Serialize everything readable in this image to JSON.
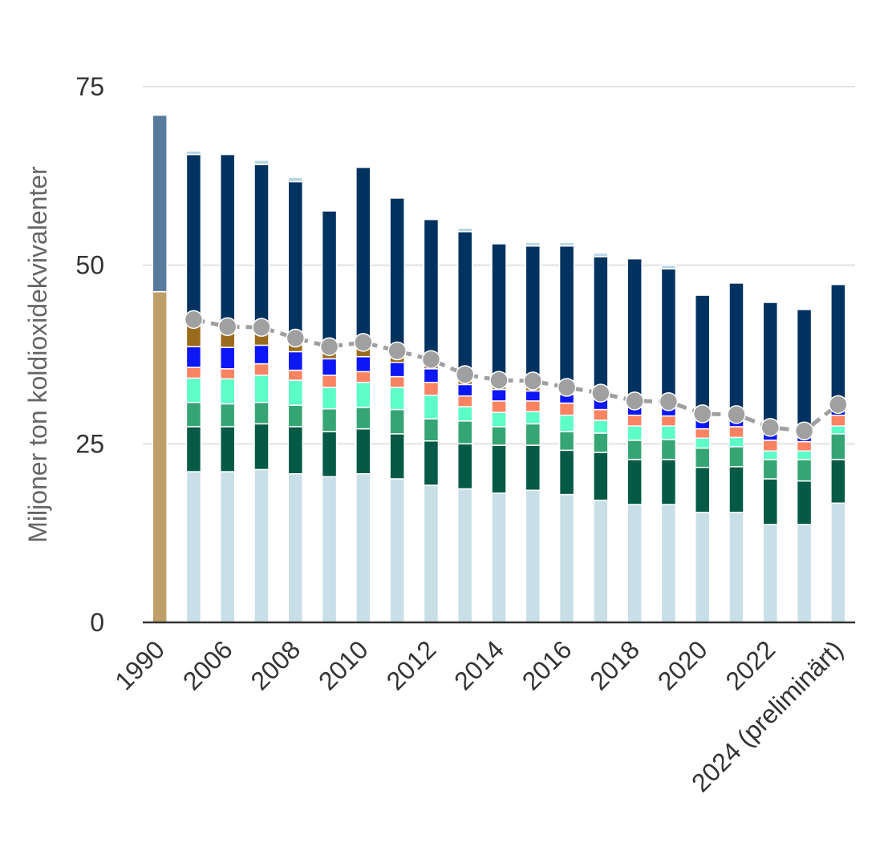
{
  "chart_data": {
    "type": "bar",
    "y_label": "Miljoner ton koldioxidekvivalenter",
    "categories": [
      "1990",
      null,
      "2006",
      null,
      "2008",
      null,
      "2010",
      null,
      "2012",
      null,
      "2014",
      null,
      "2016",
      null,
      "2018",
      null,
      "2020",
      null,
      "2022",
      null,
      "2024 (preliminärt)"
    ],
    "ylim": [
      0,
      75
    ],
    "yticks": [
      0,
      25,
      50,
      75
    ],
    "grid": true,
    "series": [
      {
        "color": "#bf9f69",
        "values": [
          46.3,
          null,
          null,
          null,
          null,
          null,
          null,
          null,
          null,
          null,
          null,
          null,
          null,
          null,
          null,
          null,
          null,
          null,
          null,
          null,
          null
        ]
      },
      {
        "color": "#587a9c",
        "values": [
          24.7,
          null,
          null,
          null,
          null,
          null,
          null,
          null,
          null,
          null,
          null,
          null,
          null,
          null,
          null,
          null,
          null,
          null,
          null,
          null,
          null
        ]
      },
      {
        "color": "#c9dfe7",
        "values": [
          null,
          21.1,
          21.1,
          21.4,
          20.8,
          20.4,
          20.8,
          20.1,
          19.2,
          18.7,
          18.1,
          18.5,
          17.9,
          17.1,
          16.5,
          16.5,
          15.4,
          15.4,
          13.7,
          13.7,
          16.7
        ]
      },
      {
        "color": "#045a45",
        "values": [
          null,
          6.3,
          6.3,
          6.4,
          6.6,
          6.3,
          6.3,
          6.3,
          6.2,
          6.3,
          6.7,
          6.3,
          6.2,
          6.7,
          6.3,
          6.3,
          6.3,
          6.4,
          6.4,
          6.1,
          6.1
        ]
      },
      {
        "color": "#36a574",
        "values": [
          null,
          3.4,
          3.2,
          3.0,
          3.0,
          3.2,
          3.0,
          3.4,
          3.1,
          3.2,
          2.6,
          3.0,
          2.6,
          2.7,
          2.7,
          2.8,
          2.7,
          2.8,
          2.7,
          3.0,
          3.6
        ]
      },
      {
        "color": "#5dfdc8",
        "values": [
          null,
          3.4,
          3.5,
          3.8,
          3.5,
          3.0,
          3.5,
          3.1,
          3.3,
          2.0,
          2.0,
          1.7,
          2.3,
          1.8,
          2.0,
          1.9,
          1.4,
          1.3,
          1.2,
          1.2,
          1.1
        ]
      },
      {
        "color": "#fa8362",
        "values": [
          null,
          1.5,
          1.4,
          1.6,
          1.4,
          1.7,
          1.5,
          1.5,
          1.8,
          1.5,
          1.6,
          1.5,
          1.7,
          1.5,
          1.5,
          1.4,
          1.3,
          1.5,
          1.5,
          1.3,
          1.5
        ]
      },
      {
        "color": "#0d16f5",
        "values": [
          null,
          2.9,
          3.0,
          2.6,
          2.6,
          2.3,
          2.1,
          2.0,
          1.9,
          1.6,
          1.6,
          1.4,
          1.2,
          1.4,
          1.4,
          1.4,
          1.3,
          1.2,
          1.2,
          1.0,
          1.1
        ]
      },
      {
        "color": "#9a6b1d",
        "values": [
          null,
          3.5,
          2.9,
          2.6,
          2.1,
          1.7,
          1.4,
          0.9,
          0.9,
          1.2,
          0.9,
          0.9,
          0.7,
          0.8,
          0.7,
          0.8,
          0.6,
          0.6,
          0.5,
          0.4,
          0.4
        ]
      },
      {
        "color": "#02325f",
        "values": [
          null,
          23.4,
          24.1,
          22.7,
          21.7,
          19.0,
          25.1,
          22.1,
          20.0,
          20.2,
          19.5,
          19.4,
          20.1,
          19.2,
          19.8,
          18.4,
          16.8,
          18.3,
          17.6,
          17.1,
          16.8
        ]
      },
      {
        "color": "#b9d6e6",
        "values": [
          null,
          0.5,
          null,
          0.6,
          0.6,
          null,
          null,
          null,
          null,
          0.5,
          null,
          0.5,
          0.5,
          0.5,
          null,
          0.5,
          null,
          null,
          null,
          null,
          null
        ]
      }
    ],
    "line": {
      "color": "#a0a0a0",
      "values": [
        null,
        42.4,
        41.4,
        41.3,
        39.8,
        38.6,
        39.2,
        38.0,
        36.8,
        34.7,
        33.9,
        33.8,
        32.9,
        32.1,
        31.0,
        30.9,
        29.2,
        29.1,
        27.3,
        26.8,
        30.5
      ]
    }
  }
}
